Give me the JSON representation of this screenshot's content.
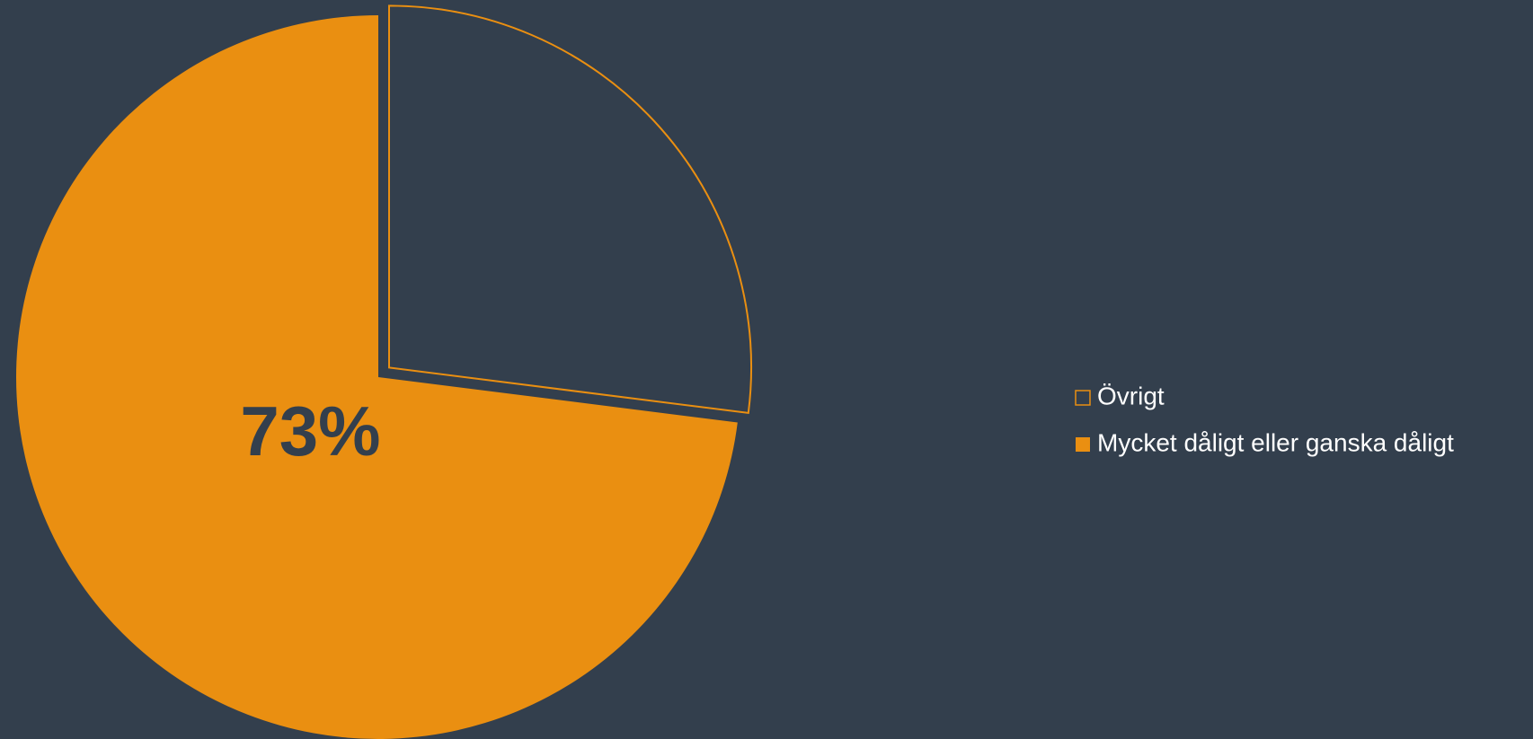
{
  "chart_data": {
    "type": "pie",
    "categories": [
      "Övrigt",
      "Mycket dåligt eller ganska dåligt"
    ],
    "values": [
      27,
      73
    ],
    "value_labels": [
      null,
      "73%"
    ],
    "colors": [
      "#ea8f11",
      "#ea8f11"
    ],
    "filled": [
      false,
      true
    ],
    "legend": "right"
  }
}
